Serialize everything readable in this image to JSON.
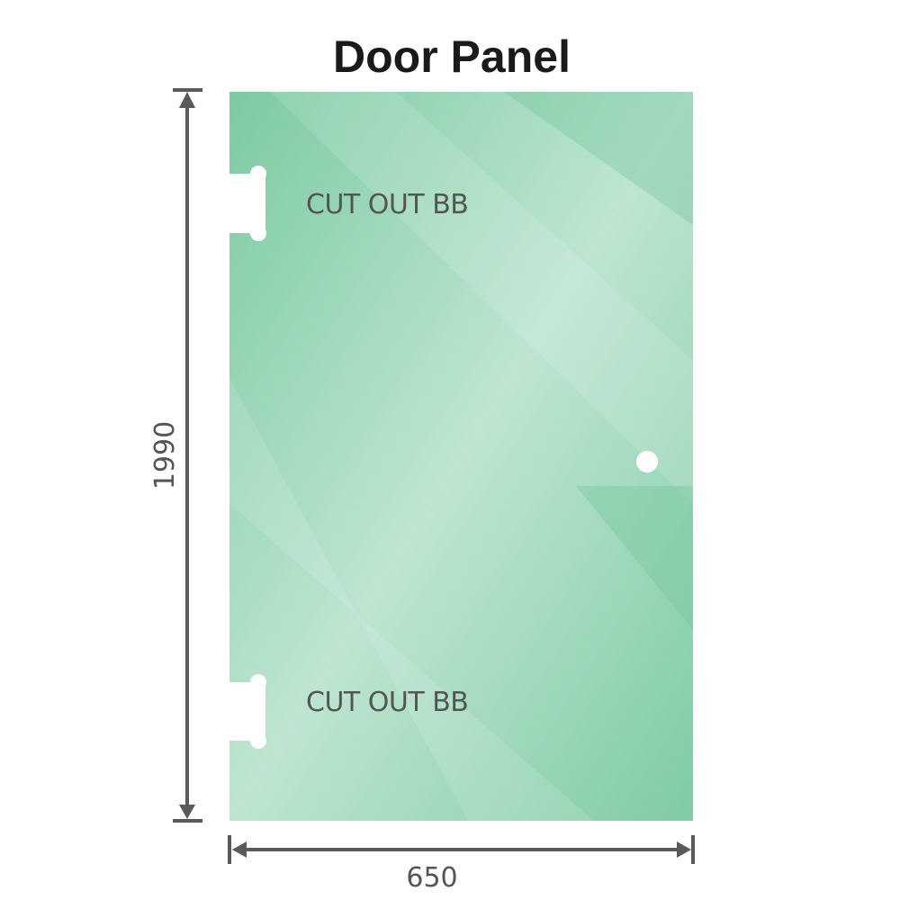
{
  "title": "Door Panel",
  "height_dimension": "1990",
  "width_dimension": "650",
  "cutouts": [
    {
      "label": "CUT OUT BB"
    },
    {
      "label": "CUT OUT BB"
    }
  ],
  "colors": {
    "glass": "#86cfa8",
    "glass_light": "#bfe6d2",
    "dimension_line": "#5a5a5a"
  }
}
